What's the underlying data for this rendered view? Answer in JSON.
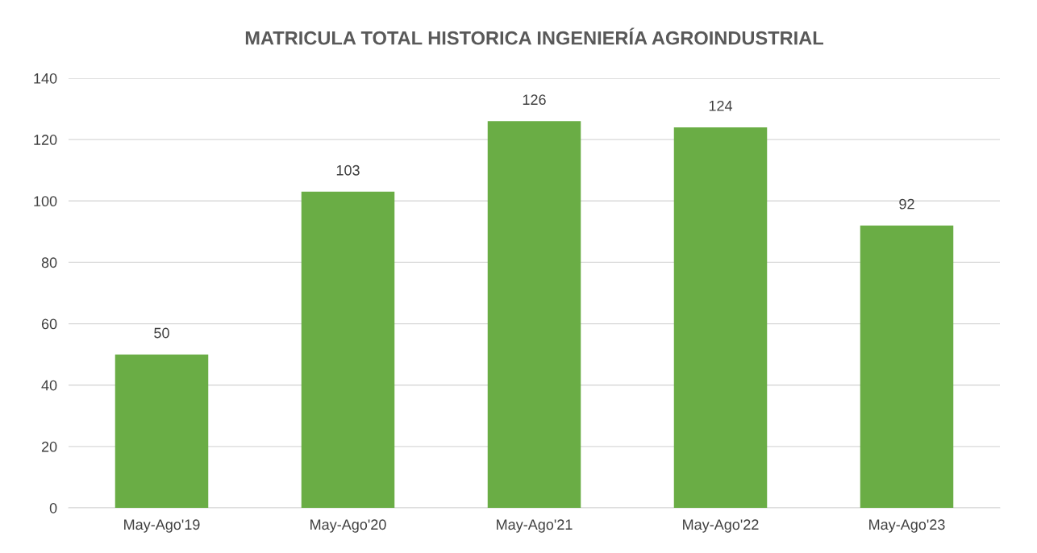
{
  "chart_data": {
    "type": "bar",
    "title": "MATRICULA TOTAL HISTORICA INGENIERÍA AGROINDUSTRIAL",
    "categories": [
      "May-Ago'19",
      "May-Ago'20",
      "May-Ago'21",
      "May-Ago'22",
      "May-Ago'23"
    ],
    "values": [
      50,
      103,
      126,
      124,
      92
    ],
    "color": "#6aad45",
    "ylim": [
      0,
      140
    ],
    "yticks": [
      0,
      20,
      40,
      60,
      80,
      100,
      120,
      140
    ],
    "grid": "y",
    "data_labels": true
  }
}
